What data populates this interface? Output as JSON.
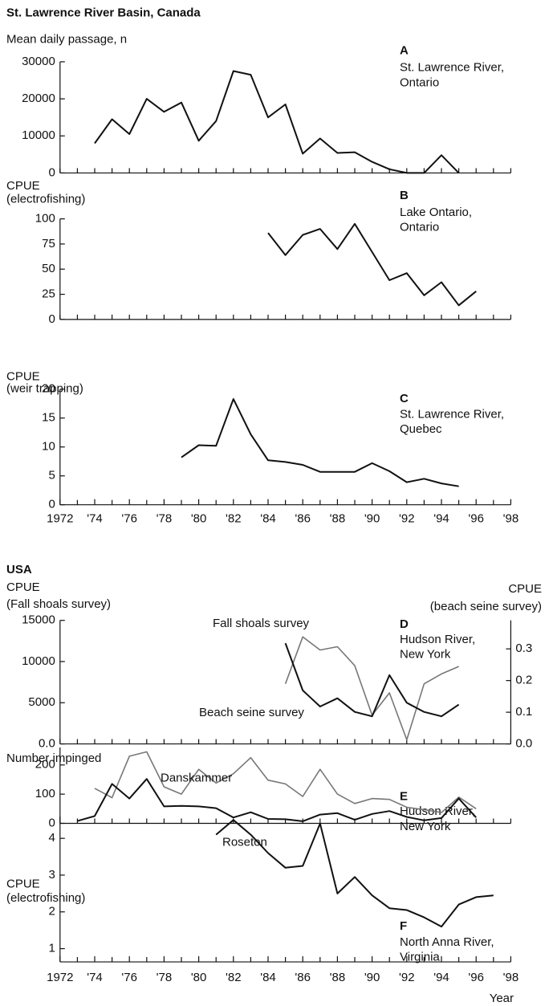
{
  "sections": [
    "St. Lawrence River Basin, Canada",
    "USA"
  ],
  "chart_data": [
    {
      "type": "line",
      "letter": "A",
      "location": [
        "St. Lawrence River,",
        "Ontario"
      ],
      "ylabel": [
        "Mean daily passage, n"
      ],
      "xlim": [
        1972,
        1998
      ],
      "ylim": [
        0,
        30000
      ],
      "yticks": [
        0,
        10000,
        20000,
        30000
      ],
      "series": [
        {
          "name": null,
          "color": "#111111",
          "x": [
            1974,
            1975,
            1976,
            1977,
            1978,
            1979,
            1980,
            1981,
            1982,
            1983,
            1984,
            1985,
            1986,
            1987,
            1988,
            1989,
            1990,
            1991,
            1992,
            1993,
            1994,
            1995
          ],
          "values": [
            8000,
            14500,
            10500,
            20000,
            16500,
            19000,
            8700,
            14000,
            27500,
            26500,
            15000,
            18500,
            5200,
            9300,
            5400,
            5600,
            3000,
            1000,
            0,
            0,
            4800,
            0
          ]
        }
      ]
    },
    {
      "type": "line",
      "letter": "B",
      "location": [
        "Lake Ontario,",
        "Ontario"
      ],
      "ylabel": [
        "CPUE",
        "(electrofishing)"
      ],
      "xlim": [
        1972,
        1998
      ],
      "ylim": [
        0,
        100
      ],
      "yticks": [
        0,
        25,
        50,
        75,
        100
      ],
      "series": [
        {
          "name": null,
          "color": "#111111",
          "x": [
            1984,
            1985,
            1986,
            1987,
            1988,
            1989,
            1990,
            1991,
            1992,
            1993,
            1994,
            1995,
            1996
          ],
          "values": [
            86,
            64,
            84,
            90,
            70,
            95,
            67,
            39,
            46,
            24,
            37,
            14,
            28
          ]
        }
      ]
    },
    {
      "type": "line",
      "letter": "C",
      "location": [
        "St. Lawrence River,",
        "Quebec"
      ],
      "ylabel": [
        "CPUE",
        "(weir trapping)"
      ],
      "xlim": [
        1972,
        1998
      ],
      "ylim": [
        0,
        20
      ],
      "yticks": [
        0,
        5,
        10,
        15,
        20
      ],
      "xticks": [
        {
          "value": 1972,
          "label": "1972"
        },
        {
          "value": 1974,
          "label": "'74"
        },
        {
          "value": 1976,
          "label": "'76"
        },
        {
          "value": 1978,
          "label": "'78"
        },
        {
          "value": 1980,
          "label": "'80"
        },
        {
          "value": 1982,
          "label": "'82"
        },
        {
          "value": 1984,
          "label": "'84"
        },
        {
          "value": 1986,
          "label": "'86"
        },
        {
          "value": 1988,
          "label": "'88"
        },
        {
          "value": 1990,
          "label": "'90"
        },
        {
          "value": 1992,
          "label": "'92"
        },
        {
          "value": 1994,
          "label": "'94"
        },
        {
          "value": 1996,
          "label": "'96"
        },
        {
          "value": 1998,
          "label": "'98"
        }
      ],
      "series": [
        {
          "name": null,
          "color": "#111111",
          "x": [
            1979,
            1980,
            1981,
            1982,
            1983,
            1984,
            1985,
            1986,
            1987,
            1988,
            1989,
            1990,
            1991,
            1992,
            1993,
            1994,
            1995
          ],
          "values": [
            8.2,
            10.3,
            10.2,
            18.3,
            12.2,
            7.7,
            7.4,
            6.9,
            5.7,
            5.7,
            5.7,
            7.2,
            5.8,
            3.9,
            4.5,
            3.7,
            3.2
          ]
        }
      ]
    },
    {
      "type": "line",
      "letter": "D",
      "location": [
        "Hudson River,",
        "New York"
      ],
      "ylabel": [
        "CPUE",
        "(Fall shoals survey)"
      ],
      "y2label": [
        "CPUE",
        "(beach seine survey)"
      ],
      "xlim": [
        1972,
        1998
      ],
      "ylim": [
        0,
        15000
      ],
      "yticks": [
        {
          "value": 0,
          "label": "0.0"
        },
        5000,
        10000,
        15000
      ],
      "y2lim": [
        0,
        0.39
      ],
      "y2ticks": [
        {
          "value": 0,
          "label": "0.0"
        },
        0.1,
        0.2,
        0.3
      ],
      "series": [
        {
          "name": "Fall shoals survey",
          "color": "#777777",
          "x": [
            1985,
            1986,
            1987,
            1988,
            1989,
            1990,
            1991,
            1992,
            1993,
            1994,
            1995
          ],
          "values": [
            7300,
            13000,
            11400,
            11800,
            9500,
            3500,
            6200,
            500,
            7300,
            8500,
            9400
          ]
        },
        {
          "name": "Beach seine survey",
          "color": "#111111",
          "axis": "y2",
          "x": [
            1985,
            1986,
            1987,
            1988,
            1989,
            1990,
            1991,
            1992,
            1993,
            1994,
            1995
          ],
          "values": [
            0.318,
            0.169,
            0.118,
            0.144,
            0.101,
            0.087,
            0.217,
            0.13,
            0.101,
            0.087,
            0.124
          ]
        }
      ]
    },
    {
      "type": "line",
      "letter": "E",
      "location": [
        "Hudson River,",
        "New York"
      ],
      "ylabel": [
        "Number impinged"
      ],
      "xlim": [
        1972,
        1998
      ],
      "ylim": [
        0,
        260
      ],
      "yticks": [
        0,
        100,
        200
      ],
      "series": [
        {
          "name": "Danskammer",
          "color": "#777777",
          "x": [
            1974,
            1975,
            1976,
            1977,
            1978,
            1979,
            1980,
            1981,
            1982,
            1983,
            1984,
            1985,
            1986,
            1987,
            1988,
            1989,
            1990,
            1991,
            1992,
            1993,
            1994,
            1995,
            1996
          ],
          "values": [
            120,
            88,
            230,
            245,
            125,
            100,
            185,
            138,
            170,
            225,
            148,
            135,
            92,
            185,
            100,
            68,
            85,
            82,
            55,
            47,
            37,
            90,
            50
          ]
        },
        {
          "name": "Roseton",
          "color": "#111111",
          "x": [
            1973,
            1974,
            1975,
            1976,
            1977,
            1978,
            1979,
            1980,
            1981,
            1982,
            1983,
            1984,
            1985,
            1986,
            1987,
            1988,
            1989,
            1990,
            1991,
            1992,
            1993,
            1994,
            1995,
            1996
          ],
          "values": [
            8,
            25,
            135,
            85,
            152,
            58,
            60,
            58,
            52,
            20,
            38,
            15,
            14,
            7,
            30,
            35,
            12,
            32,
            42,
            22,
            10,
            18,
            85,
            20
          ]
        }
      ]
    },
    {
      "type": "line",
      "letter": "F",
      "location": [
        "North Anna River,",
        "Virginia"
      ],
      "ylabel": [
        "CPUE",
        "(electrofishing)"
      ],
      "xlabel": "Year",
      "xlim": [
        1972,
        1998
      ],
      "ylim": [
        0.64,
        4.6
      ],
      "yticks": [
        1,
        2,
        3,
        4
      ],
      "xticks": [
        {
          "value": 1972,
          "label": "1972"
        },
        {
          "value": 1974,
          "label": "'74"
        },
        {
          "value": 1976,
          "label": "'76"
        },
        {
          "value": 1978,
          "label": "'78"
        },
        {
          "value": 1980,
          "label": "'80"
        },
        {
          "value": 1982,
          "label": "'82"
        },
        {
          "value": 1984,
          "label": "'84"
        },
        {
          "value": 1986,
          "label": "'86"
        },
        {
          "value": 1988,
          "label": "'88"
        },
        {
          "value": 1990,
          "label": "'90"
        },
        {
          "value": 1992,
          "label": "'92"
        },
        {
          "value": 1994,
          "label": "'94"
        },
        {
          "value": 1996,
          "label": "'96"
        },
        {
          "value": 1998,
          "label": "'98"
        }
      ],
      "series": [
        {
          "name": null,
          "color": "#111111",
          "x": [
            1981,
            1982,
            1983,
            1984,
            1985,
            1986,
            1987,
            1988,
            1989,
            1990,
            1991,
            1992,
            1993,
            1994,
            1995,
            1996,
            1997
          ],
          "values": [
            4.1,
            4.5,
            4.1,
            3.6,
            3.2,
            3.25,
            4.4,
            2.5,
            2.95,
            2.45,
            2.1,
            2.05,
            1.85,
            1.6,
            2.2,
            2.4,
            2.45
          ]
        }
      ]
    }
  ]
}
